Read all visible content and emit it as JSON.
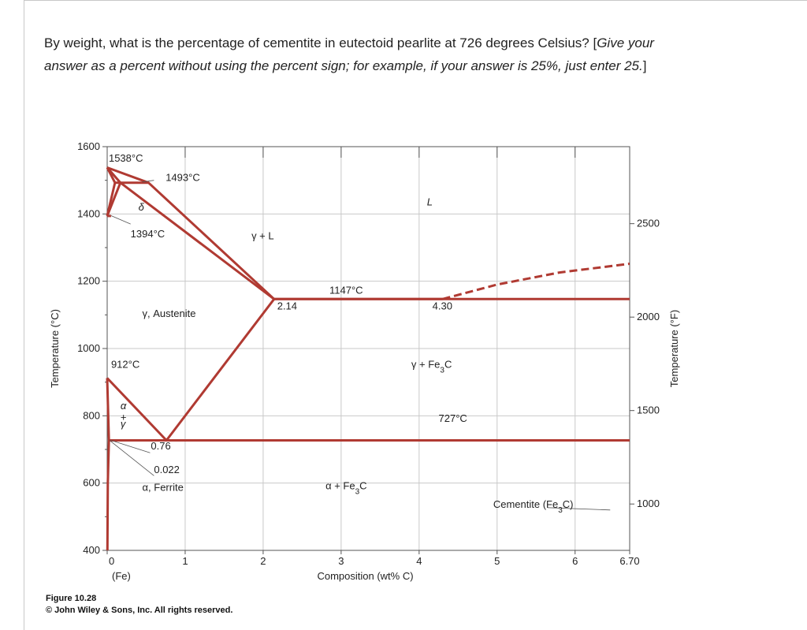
{
  "question": {
    "intro": "By weight, what is the percentage of cementite in eutectoid pearlite at 726 degrees Celsius? [",
    "hint": "Give your answer as a percent without using the percent sign; for example, if your answer is 25%, just enter 25.",
    "closing": "]"
  },
  "caption": {
    "figure": "Figure 10.28",
    "copyright": "© John Wiley & Sons, Inc. All rights reserved."
  },
  "chart_data": {
    "type": "line",
    "title": "",
    "xlabel": "Composition (wt% C)",
    "ylabel": "Temperature (°C)",
    "y2label": "Temperature (°F)",
    "xlim": [
      0,
      6.7
    ],
    "ylim": [
      400,
      1600
    ],
    "x_ticks": [
      "0",
      "1",
      "2",
      "3",
      "4",
      "5",
      "6",
      "6.70"
    ],
    "x_tick_values": [
      0,
      1,
      2,
      3,
      4,
      5,
      6,
      6.7
    ],
    "x_origin_label": "(Fe)",
    "y_ticks": [
      "400",
      "600",
      "800",
      "1000",
      "1200",
      "1400",
      "1600"
    ],
    "y_tick_values": [
      400,
      600,
      800,
      1000,
      1200,
      1400,
      1600
    ],
    "y2_ticks": [
      "1000",
      "1500",
      "2000",
      "2500"
    ],
    "y2_tick_values": [
      1000,
      1500,
      2000,
      2500
    ],
    "grid": true,
    "line_color": "#b03a32",
    "grid_color": "#c9c9c9",
    "series": [
      {
        "name": "",
        "style": "solid",
        "points": [
          [
            0,
            1538
          ],
          [
            0.1,
            1493
          ]
        ]
      },
      {
        "name": "",
        "style": "solid",
        "points": [
          [
            0,
            1538
          ],
          [
            0.17,
            1493
          ]
        ]
      },
      {
        "name": "",
        "style": "solid",
        "points": [
          [
            0,
            1538
          ],
          [
            0.53,
            1493
          ],
          [
            2.14,
            1147
          ],
          [
            4.3,
            1147
          ]
        ]
      },
      {
        "name": "",
        "style": "solid",
        "points": [
          [
            0.1,
            1493
          ],
          [
            0.53,
            1493
          ]
        ]
      },
      {
        "name": "",
        "style": "solid",
        "points": [
          [
            0.17,
            1493
          ],
          [
            2.14,
            1147
          ]
        ]
      },
      {
        "name": "",
        "style": "solid",
        "points": [
          [
            0.1,
            1493
          ],
          [
            0,
            1394
          ]
        ]
      },
      {
        "name": "",
        "style": "solid",
        "points": [
          [
            0.17,
            1493
          ],
          [
            0,
            1394
          ]
        ]
      },
      {
        "name": "",
        "style": "solid",
        "points": [
          [
            0,
            1394
          ],
          [
            0.05,
            1394
          ]
        ]
      },
      {
        "name": "",
        "style": "solid",
        "points": [
          [
            2.14,
            1147
          ],
          [
            6.7,
            1147
          ]
        ]
      },
      {
        "name": "",
        "style": "solid",
        "points": [
          [
            2.14,
            1147
          ],
          [
            0.76,
            727
          ]
        ]
      },
      {
        "name": "",
        "style": "solid",
        "points": [
          [
            0,
            912
          ],
          [
            0.76,
            727
          ]
        ]
      },
      {
        "name": "",
        "style": "solid",
        "points": [
          [
            0,
            912
          ],
          [
            0.022,
            727
          ]
        ]
      },
      {
        "name": "",
        "style": "solid",
        "points": [
          [
            0.022,
            727
          ],
          [
            6.7,
            727
          ]
        ]
      },
      {
        "name": "",
        "style": "solid",
        "points": [
          [
            0.022,
            727
          ],
          [
            0.008,
            600
          ],
          [
            0.003,
            400
          ]
        ]
      },
      {
        "name": "",
        "style": "dashed",
        "points": [
          [
            4.3,
            1147
          ],
          [
            5.0,
            1190
          ],
          [
            5.8,
            1226
          ],
          [
            6.7,
            1252
          ]
        ]
      }
    ],
    "annotations": [
      {
        "text": "1538°C",
        "x": 0.02,
        "y": 1555
      },
      {
        "text": "1493°C",
        "x": 0.75,
        "y": 1498
      },
      {
        "text": "δ",
        "x": 0.4,
        "y": 1410
      },
      {
        "text": "L",
        "x": 4.1,
        "y": 1425
      },
      {
        "text": "1394°C",
        "x": 0.3,
        "y": 1330
      },
      {
        "text": "γ + L",
        "x": 1.85,
        "y": 1325
      },
      {
        "text": "1147°C",
        "x": 2.85,
        "y": 1163
      },
      {
        "text": "2.14",
        "x": 2.18,
        "y": 1116
      },
      {
        "text": "4.30",
        "x": 4.17,
        "y": 1116
      },
      {
        "text": "γ, Austenite",
        "x": 0.45,
        "y": 1094
      },
      {
        "text": "912°C",
        "x": 0.05,
        "y": 942
      },
      {
        "text": "γ + Fe3C",
        "x": 3.9,
        "y": 942
      },
      {
        "text": "α",
        "x": 0.17,
        "y": 820
      },
      {
        "text": "+",
        "x": 0.17,
        "y": 786
      },
      {
        "text": "γ",
        "x": 0.17,
        "y": 766
      },
      {
        "text": "727°C",
        "x": 4.25,
        "y": 782
      },
      {
        "text": "0.76",
        "x": 0.56,
        "y": 700
      },
      {
        "text": "0.022",
        "x": 0.6,
        "y": 630
      },
      {
        "text": "α, Ferrite",
        "x": 0.45,
        "y": 577
      },
      {
        "text": "α + Fe3C",
        "x": 2.8,
        "y": 582
      },
      {
        "text": "Cementite (Fe3C)",
        "x": 4.95,
        "y": 527
      }
    ]
  }
}
